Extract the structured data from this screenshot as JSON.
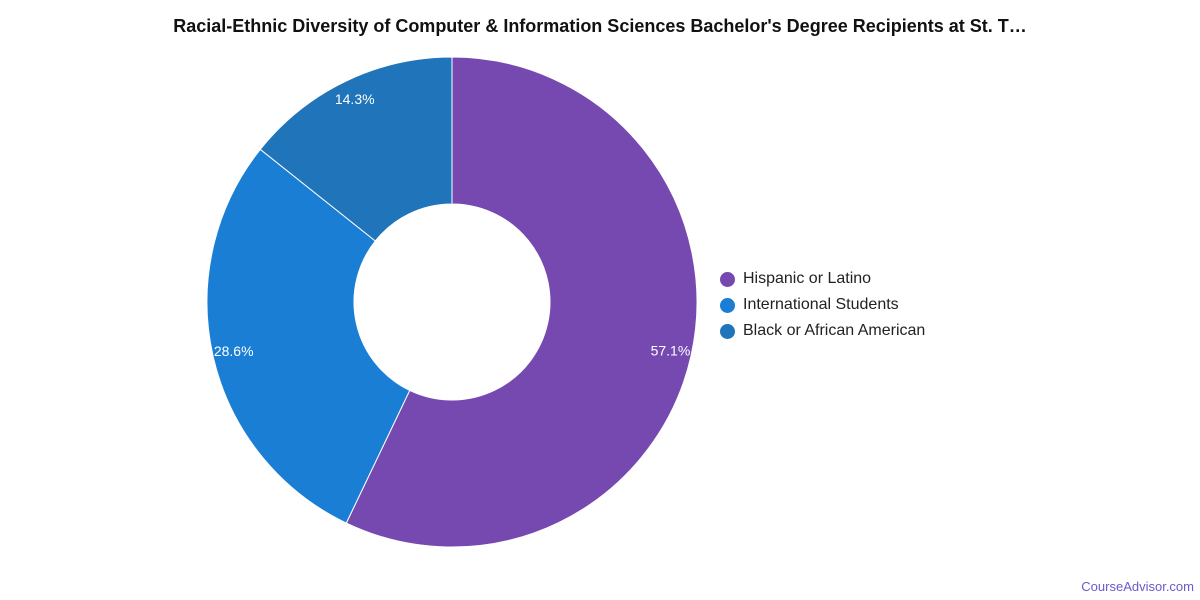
{
  "chart_data": {
    "type": "pie",
    "variant": "donut",
    "title": "Racial-Ethnic Diversity of Computer & Information Sciences Bachelor's Degree Recipients at St. T…",
    "slices": [
      {
        "label": "Hispanic or Latino",
        "value": 57.1,
        "display": "57.1%",
        "color": "#7649b0"
      },
      {
        "label": "International Students",
        "value": 28.6,
        "display": "28.6%",
        "color": "#1a7fd4"
      },
      {
        "label": "Black or African American",
        "value": 14.3,
        "display": "14.3%",
        "color": "#1f74ba"
      }
    ],
    "legend_position": "right"
  },
  "credit": "CourseAdvisor.com"
}
